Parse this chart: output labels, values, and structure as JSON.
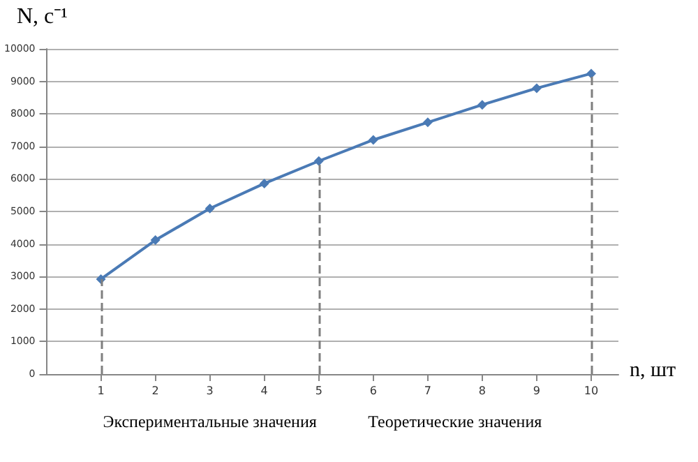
{
  "chart_data": {
    "type": "line",
    "xlabel": "n, шт",
    "ylabel": "N, с⁻¹",
    "x": [
      1,
      2,
      3,
      4,
      5,
      6,
      7,
      8,
      9,
      10
    ],
    "series": [
      {
        "color": "#4a7ab5",
        "values": [
          2920,
          4120,
          5090,
          5860,
          6550,
          7200,
          7740,
          8280,
          8790,
          9240
        ]
      }
    ],
    "xlim": [
      0,
      10.5
    ],
    "xticks": [
      1,
      2,
      3,
      4,
      5,
      6,
      7,
      8,
      9,
      10
    ],
    "ylim": [
      0,
      10000
    ],
    "yticks": [
      0,
      1000,
      2000,
      3000,
      4000,
      5000,
      6000,
      7000,
      8000,
      9000,
      10000
    ],
    "grid": "y",
    "marker": "diamond",
    "line_style": "solid",
    "ref_lines": [
      {
        "axis": "x",
        "value": 1,
        "color": "#7f7f7f",
        "line_style": "dashed"
      },
      {
        "axis": "x",
        "value": 5,
        "color": "#7f7f7f",
        "line_style": "dashed"
      },
      {
        "axis": "x",
        "value": 10,
        "color": "#7f7f7f",
        "line_style": "dashed"
      }
    ],
    "annotations": [
      "Экспериментальные значения",
      "Теоретические значения"
    ]
  }
}
